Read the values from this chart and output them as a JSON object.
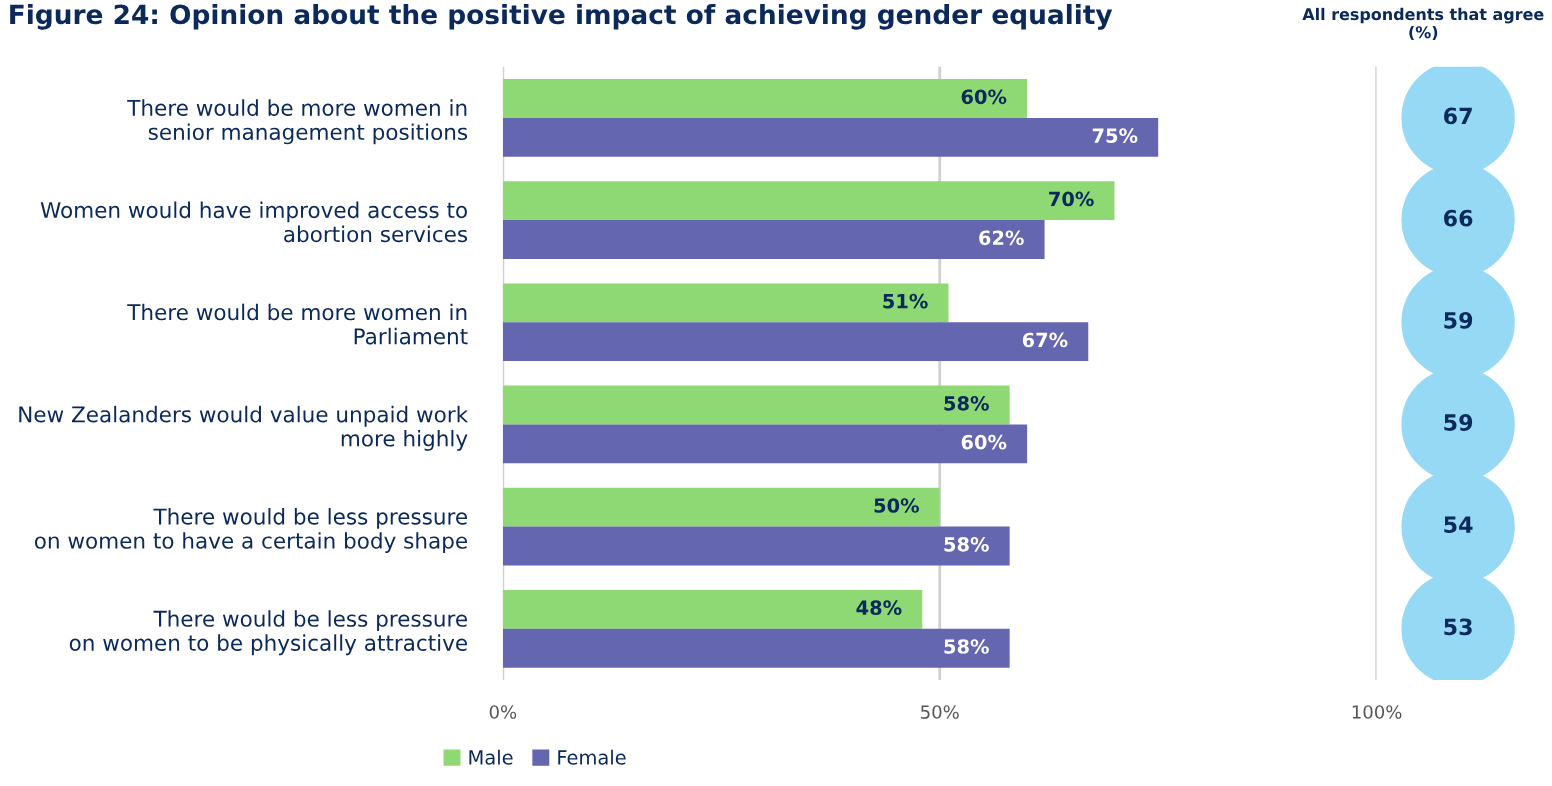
{
  "chart_data": [
    {
      "type": "bar",
      "orientation": "horizontal",
      "title": "Figure 24: Opinion about the positive impact of achieving gender equality",
      "categories": [
        "There would be more women in\nsenior management positions",
        "Women would have improved access to\nabortion services",
        "There would be more women in\nParliament",
        "New Zealanders would value unpaid work\nmore highly",
        "There would be less pressure\non women to have a certain body shape",
        "There would be less pressure\non women to be physically attractive"
      ],
      "series": [
        {
          "name": "Male",
          "color": "#8fd974",
          "values": [
            60,
            70,
            51,
            58,
            50,
            48
          ],
          "value_labels": [
            "60%",
            "70%",
            "51%",
            "58%",
            "50%",
            "48%"
          ]
        },
        {
          "name": "Female",
          "color": "#6466b0",
          "values": [
            75,
            62,
            67,
            60,
            58,
            58
          ],
          "value_labels": [
            "75%",
            "62%",
            "67%",
            "60%",
            "58%",
            "58%"
          ]
        }
      ],
      "xlim": [
        0,
        100
      ],
      "xticks": [
        {
          "value": 0,
          "label": "0%"
        },
        {
          "value": 50,
          "label": "50%"
        },
        {
          "value": 100,
          "label": "100%"
        }
      ],
      "grid": "x",
      "legend": "bottom"
    },
    {
      "type": "other",
      "title": "All respondents that agree\n(%)",
      "color": "#96d9f5",
      "values": [
        67,
        66,
        59,
        59,
        54,
        53
      ],
      "data_labels": true
    }
  ]
}
